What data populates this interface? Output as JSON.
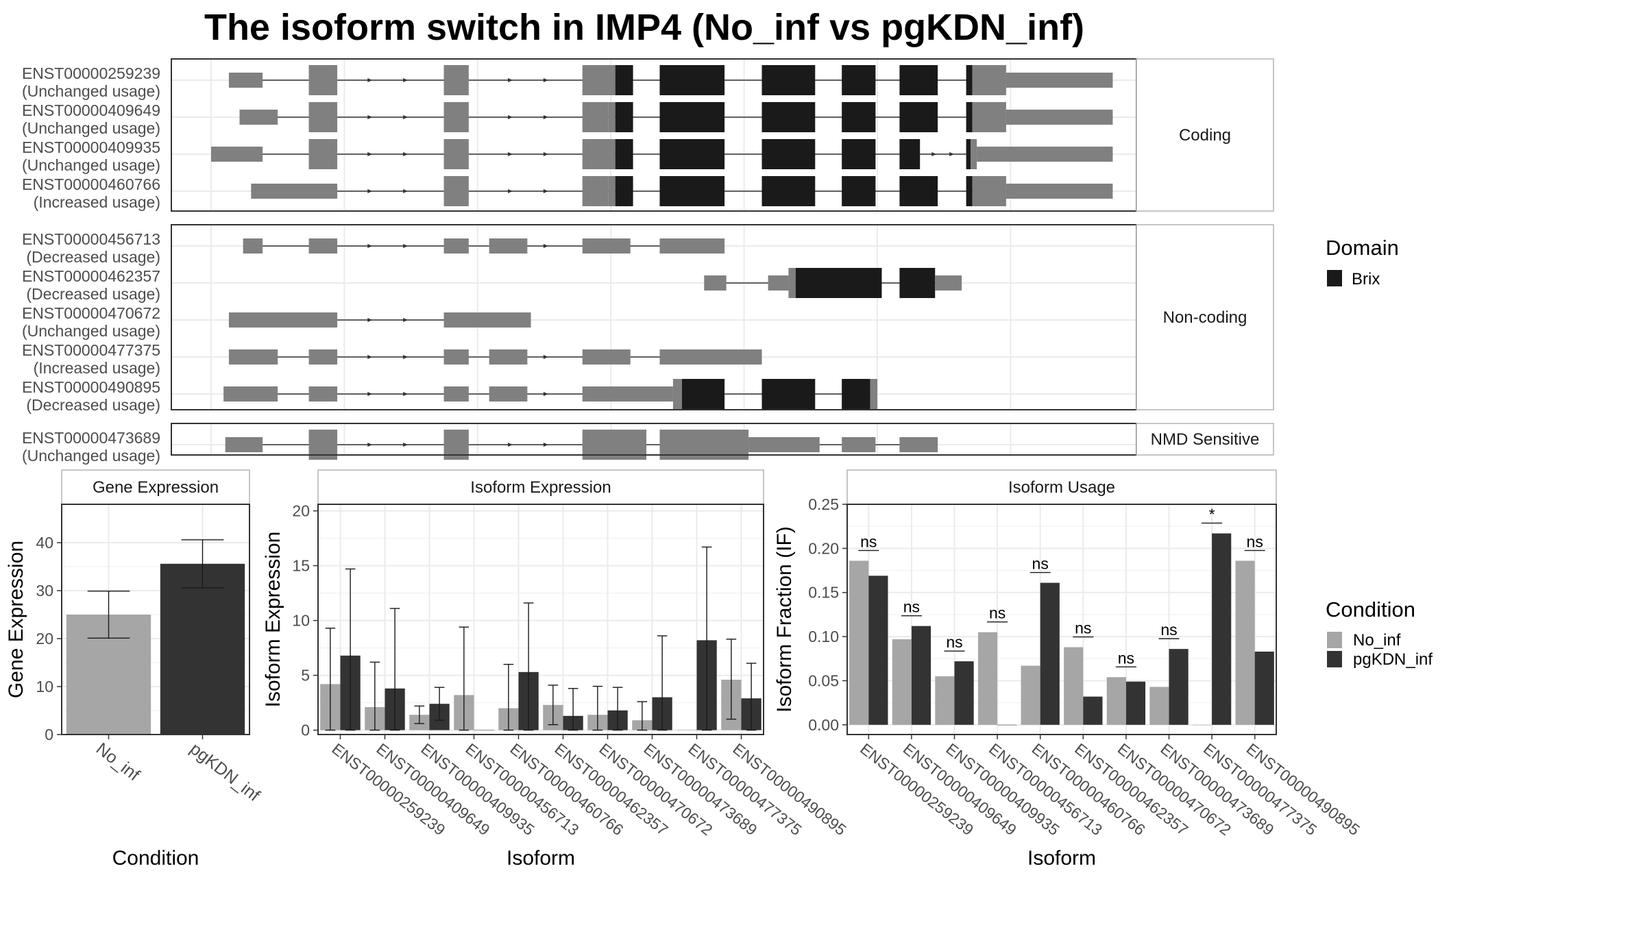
{
  "title": "The isoform switch in IMP4 (No_inf vs pgKDN_inf)",
  "colors": {
    "exon": "#808080",
    "domain": "#1a1a1a",
    "no_inf": "#a6a6a6",
    "pgkdn_inf": "#333333",
    "grid": "#ebebeb",
    "frame": "#333333",
    "strip_bg": "#ffffff"
  },
  "structure": {
    "coord_range": [
      0,
      1000
    ],
    "groups": [
      {
        "label": "Coding",
        "transcripts": [
          {
            "id": "ENST00000259239",
            "usage": "(Unchanged usage)",
            "exons": [
              [
                20,
                58,
                "n"
              ],
              [
                110,
                142,
                "t"
              ],
              [
                262,
                290,
                "t"
              ],
              [
                418,
                455,
                "t"
              ],
              [
                455,
                475,
                "d"
              ],
              [
                505,
                578,
                "d"
              ],
              [
                620,
                680,
                "d"
              ],
              [
                710,
                748,
                "d"
              ],
              [
                775,
                818,
                "d"
              ],
              [
                850,
                857,
                "d"
              ],
              [
                857,
                895,
                "t"
              ],
              [
                895,
                1015,
                "n"
              ]
            ],
            "arrows": [
              180,
              220,
              338,
              378
            ]
          },
          {
            "id": "ENST00000409649",
            "usage": "(Unchanged usage)",
            "exons": [
              [
                32,
                75,
                "n"
              ],
              [
                110,
                142,
                "t"
              ],
              [
                262,
                290,
                "t"
              ],
              [
                418,
                447,
                "t"
              ],
              [
                447,
                455,
                "t"
              ],
              [
                455,
                475,
                "d"
              ],
              [
                505,
                578,
                "d"
              ],
              [
                620,
                680,
                "d"
              ],
              [
                710,
                748,
                "d"
              ],
              [
                775,
                818,
                "d"
              ],
              [
                850,
                857,
                "d"
              ],
              [
                857,
                895,
                "t"
              ],
              [
                895,
                1015,
                "n"
              ]
            ],
            "arrows": [
              180,
              220,
              338,
              378
            ]
          },
          {
            "id": "ENST00000409935",
            "usage": "(Unchanged usage)",
            "exons": [
              [
                0,
                58,
                "n"
              ],
              [
                110,
                142,
                "t"
              ],
              [
                262,
                290,
                "t"
              ],
              [
                418,
                455,
                "t"
              ],
              [
                455,
                475,
                "d"
              ],
              [
                505,
                578,
                "d"
              ],
              [
                620,
                680,
                "d"
              ],
              [
                710,
                748,
                "d"
              ],
              [
                775,
                798,
                "d"
              ],
              [
                850,
                855,
                "d"
              ],
              [
                855,
                862,
                "t"
              ],
              [
                862,
                1015,
                "n"
              ]
            ],
            "arrows": [
              180,
              220,
              338,
              378,
              815,
              835
            ]
          },
          {
            "id": "ENST00000460766",
            "usage": "(Increased usage)",
            "exons": [
              [
                45,
                142,
                "n"
              ],
              [
                262,
                290,
                "t"
              ],
              [
                418,
                447,
                "t"
              ],
              [
                447,
                455,
                "t"
              ],
              [
                455,
                475,
                "d"
              ],
              [
                505,
                578,
                "d"
              ],
              [
                620,
                680,
                "d"
              ],
              [
                710,
                748,
                "d"
              ],
              [
                775,
                818,
                "d"
              ],
              [
                850,
                857,
                "d"
              ],
              [
                857,
                895,
                "t"
              ],
              [
                895,
                1015,
                "n"
              ]
            ],
            "arrows": [
              180,
              220,
              338,
              378
            ]
          }
        ]
      },
      {
        "label": "Non-coding",
        "transcripts": [
          {
            "id": "ENST00000456713",
            "usage": "(Decreased usage)",
            "exons": [
              [
                36,
                58,
                "n"
              ],
              [
                110,
                142,
                "n"
              ],
              [
                262,
                290,
                "n"
              ],
              [
                313,
                356,
                "n"
              ],
              [
                418,
                472,
                "n"
              ],
              [
                505,
                578,
                "n"
              ]
            ],
            "arrows": [
              180,
              220,
              338,
              378
            ]
          },
          {
            "id": "ENST00000462357",
            "usage": "(Decreased usage)",
            "exons": [
              [
                555,
                580,
                "n"
              ],
              [
                627,
                650,
                "n"
              ],
              [
                650,
                658,
                "t"
              ],
              [
                658,
                755,
                "d"
              ],
              [
                775,
                815,
                "d"
              ],
              [
                815,
                845,
                "n"
              ]
            ],
            "arrows": []
          },
          {
            "id": "ENST00000470672",
            "usage": "(Unchanged usage)",
            "exons": [
              [
                20,
                142,
                "n"
              ],
              [
                262,
                360,
                "n"
              ]
            ],
            "arrows": [
              180,
              220
            ]
          },
          {
            "id": "ENST00000477375",
            "usage": "(Increased usage)",
            "exons": [
              [
                20,
                75,
                "n"
              ],
              [
                110,
                142,
                "n"
              ],
              [
                262,
                290,
                "n"
              ],
              [
                313,
                356,
                "n"
              ],
              [
                418,
                472,
                "n"
              ],
              [
                505,
                620,
                "n"
              ]
            ],
            "arrows": [
              180,
              220,
              338,
              378
            ]
          },
          {
            "id": "ENST00000490895",
            "usage": "(Decreased usage)",
            "exons": [
              [
                14,
                75,
                "n"
              ],
              [
                110,
                142,
                "n"
              ],
              [
                262,
                290,
                "n"
              ],
              [
                313,
                356,
                "n"
              ],
              [
                418,
                520,
                "n"
              ],
              [
                520,
                530,
                "t"
              ],
              [
                530,
                578,
                "d"
              ],
              [
                620,
                680,
                "d"
              ],
              [
                710,
                742,
                "d"
              ],
              [
                742,
                750,
                "t"
              ]
            ],
            "arrows": [
              180,
              220,
              338,
              378
            ]
          }
        ]
      },
      {
        "label": "NMD Sensitive",
        "transcripts": [
          {
            "id": "ENST00000473689",
            "usage": "(Unchanged usage)",
            "exons": [
              [
                16,
                58,
                "n"
              ],
              [
                110,
                142,
                "t"
              ],
              [
                262,
                290,
                "t"
              ],
              [
                418,
                490,
                "t"
              ],
              [
                505,
                605,
                "t"
              ],
              [
                605,
                685,
                "n"
              ],
              [
                710,
                748,
                "n"
              ],
              [
                775,
                818,
                "n"
              ]
            ],
            "arrows": [
              180,
              220,
              338,
              378
            ]
          }
        ]
      }
    ],
    "legend": {
      "title": "Domain",
      "items": [
        {
          "label": "Brix",
          "color": "#1a1a1a"
        }
      ]
    }
  },
  "chart_data": [
    {
      "type": "bar",
      "title": "Gene Expression",
      "xlabel": "Condition",
      "ylabel": "Gene Expression",
      "categories": [
        "No_inf",
        "pgKDN_inf"
      ],
      "values": [
        25.0,
        35.6
      ],
      "error_low": [
        20.1,
        30.6
      ],
      "error_high": [
        29.9,
        40.6
      ],
      "ylim": [
        0,
        48
      ],
      "yticks": [
        0,
        10,
        20,
        30,
        40
      ]
    },
    {
      "type": "bar",
      "title": "Isoform Expression",
      "xlabel": "Isoform",
      "ylabel": "Isoform Expression",
      "categories": [
        "ENST00000259239",
        "ENST00000409649",
        "ENST00000409935",
        "ENST00000456713",
        "ENST00000460766",
        "ENST00000462357",
        "ENST00000470672",
        "ENST00000473689",
        "ENST00000477375",
        "ENST00000490895"
      ],
      "series": [
        {
          "name": "No_inf",
          "values": [
            4.2,
            2.1,
            1.4,
            3.2,
            2.0,
            2.3,
            1.4,
            0.9,
            0.0,
            4.6
          ],
          "error_low": [
            0,
            0,
            0.6,
            0,
            0,
            0.5,
            0,
            0,
            0,
            1.0
          ],
          "error_high": [
            9.3,
            6.2,
            2.2,
            9.4,
            6.0,
            4.1,
            4.0,
            2.6,
            0,
            8.3
          ]
        },
        {
          "name": "pgKDN_inf",
          "values": [
            6.8,
            3.8,
            2.4,
            0.0,
            5.3,
            1.3,
            1.8,
            3.0,
            8.2,
            2.9
          ],
          "error_low": [
            0,
            0,
            0.9,
            0,
            0,
            0,
            0,
            0,
            0,
            0
          ],
          "error_high": [
            14.7,
            11.1,
            3.9,
            0,
            11.6,
            3.8,
            3.9,
            8.6,
            16.7,
            6.1
          ]
        }
      ],
      "ylim": [
        -0.4,
        20.6
      ],
      "yticks": [
        0,
        5,
        10,
        15,
        20
      ]
    },
    {
      "type": "bar",
      "title": "Isoform Usage",
      "xlabel": "Isoform",
      "ylabel": "Isoform Fraction (IF)",
      "categories": [
        "ENST00000259239",
        "ENST00000409649",
        "ENST00000409935",
        "ENST00000456713",
        "ENST00000460766",
        "ENST00000462357",
        "ENST00000470672",
        "ENST00000473689",
        "ENST00000477375",
        "ENST00000490895"
      ],
      "series": [
        {
          "name": "No_inf",
          "values": [
            0.186,
            0.097,
            0.055,
            0.105,
            0.067,
            0.088,
            0.054,
            0.043,
            0.0,
            0.186
          ]
        },
        {
          "name": "pgKDN_inf",
          "values": [
            0.169,
            0.112,
            0.072,
            0.0,
            0.161,
            0.032,
            0.049,
            0.086,
            0.217,
            0.083
          ]
        }
      ],
      "significance": [
        "ns",
        "ns",
        "ns",
        "ns",
        "ns",
        "ns",
        "ns",
        "ns",
        "*",
        "ns"
      ],
      "ylim": [
        -0.011,
        0.25
      ],
      "yticks": [
        0.0,
        0.05,
        0.1,
        0.15,
        0.2,
        0.25
      ],
      "ytick_labels": [
        "0.00",
        "0.05",
        "0.10",
        "0.15",
        "0.20",
        "0.25"
      ]
    }
  ],
  "condition_legend": {
    "title": "Condition",
    "items": [
      {
        "label": "No_inf",
        "color": "#a6a6a6"
      },
      {
        "label": "pgKDN_inf",
        "color": "#333333"
      }
    ]
  }
}
